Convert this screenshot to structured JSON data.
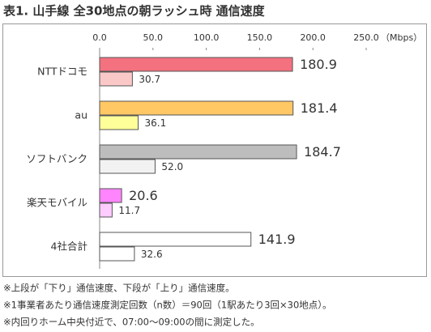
{
  "chart_data": {
    "type": "bar",
    "orientation": "horizontal",
    "title": "表1. 山手線 全30地点の朝ラッシュ時 通信速度",
    "x_label": "（Mbps）",
    "categories": [
      "NTTドコモ",
      "au",
      "ソフトバンク",
      "楽天モバイル",
      "4社合計"
    ],
    "series": [
      {
        "colors": [
          "#f4717f",
          "#ffc865",
          "#bdbdbd",
          "#ff85ff",
          "#ffffff"
        ],
        "values": [
          180.9,
          181.4,
          184.7,
          20.6,
          141.9
        ]
      },
      {
        "colors": [
          "#fbc8c8",
          "#ffff99",
          "#f2f2f2",
          "#ffccff",
          "#ffffff"
        ],
        "values": [
          30.7,
          36.1,
          52.0,
          11.7,
          32.6
        ],
        "value_labels": [
          "30.7",
          "36.1",
          "52.0",
          "11.7",
          "32.6"
        ]
      }
    ],
    "xlim": [
      0,
      250
    ],
    "xticks": [
      {
        "value": 0,
        "label": "0.0"
      },
      {
        "value": 50,
        "label": "50.0"
      },
      {
        "value": 100,
        "label": "100.0"
      },
      {
        "value": 150,
        "label": "150.0"
      },
      {
        "value": 200,
        "label": "200.0"
      },
      {
        "value": 250,
        "label": "250.0"
      }
    ],
    "grid": false,
    "notes": [
      "※上段が「下り」通信速度、下段が「上り」通信速度。",
      "※1事業者あたり通信速度測定回数（n数）＝90回（1駅あたり3回×30地点）。",
      "※内回りホーム中央付近で、07:00～09:00の間に測定した。"
    ]
  }
}
